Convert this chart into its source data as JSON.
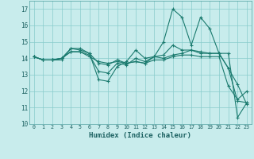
{
  "xlabel": "Humidex (Indice chaleur)",
  "background_color": "#c8ecec",
  "grid_color": "#88cccc",
  "line_color": "#1a7a6e",
  "ylim": [
    10,
    17.5
  ],
  "xlim": [
    -0.5,
    23.5
  ],
  "yticks": [
    10,
    11,
    12,
    13,
    14,
    15,
    16,
    17
  ],
  "xticks": [
    0,
    1,
    2,
    3,
    4,
    5,
    6,
    7,
    8,
    9,
    10,
    11,
    12,
    13,
    14,
    15,
    16,
    17,
    18,
    19,
    20,
    21,
    22,
    23
  ],
  "lines": [
    {
      "x": [
        0,
        1,
        2,
        3,
        4,
        5,
        6,
        7,
        8,
        9,
        10,
        11,
        12,
        13,
        14,
        15,
        16,
        17,
        18,
        19,
        20,
        21,
        22,
        23
      ],
      "y": [
        14.1,
        13.9,
        13.9,
        13.9,
        14.6,
        14.5,
        14.3,
        12.7,
        12.6,
        13.5,
        13.8,
        14.5,
        14.0,
        14.1,
        15.0,
        17.0,
        16.5,
        14.8,
        16.5,
        15.8,
        14.3,
        13.4,
        12.4,
        11.2
      ]
    },
    {
      "x": [
        0,
        1,
        2,
        3,
        4,
        5,
        6,
        7,
        8,
        9,
        10,
        11,
        12,
        13,
        14,
        15,
        16,
        17,
        18,
        19,
        20,
        21,
        22,
        23
      ],
      "y": [
        14.1,
        13.9,
        13.9,
        14.0,
        14.6,
        14.6,
        14.3,
        13.7,
        13.6,
        13.9,
        13.7,
        13.8,
        13.7,
        14.1,
        14.0,
        14.2,
        14.3,
        14.5,
        14.3,
        14.3,
        14.3,
        14.3,
        10.4,
        11.3
      ]
    },
    {
      "x": [
        0,
        1,
        2,
        3,
        4,
        5,
        6,
        7,
        8,
        9,
        10,
        11,
        12,
        13,
        14,
        15,
        16,
        17,
        18,
        19,
        20,
        21,
        22,
        23
      ],
      "y": [
        14.1,
        13.9,
        13.9,
        14.0,
        14.4,
        14.4,
        14.2,
        13.2,
        13.1,
        13.7,
        13.6,
        14.0,
        13.8,
        14.1,
        14.2,
        14.8,
        14.5,
        14.5,
        14.4,
        14.3,
        14.3,
        13.4,
        11.4,
        11.3
      ]
    },
    {
      "x": [
        0,
        1,
        2,
        3,
        4,
        5,
        6,
        7,
        8,
        9,
        10,
        11,
        12,
        13,
        14,
        15,
        16,
        17,
        18,
        19,
        20,
        21,
        22,
        23
      ],
      "y": [
        14.1,
        13.9,
        13.9,
        14.0,
        14.4,
        14.4,
        14.1,
        13.8,
        13.7,
        13.8,
        13.7,
        13.8,
        13.7,
        13.9,
        13.9,
        14.1,
        14.2,
        14.2,
        14.1,
        14.1,
        14.1,
        12.3,
        11.5,
        12.0
      ]
    }
  ]
}
